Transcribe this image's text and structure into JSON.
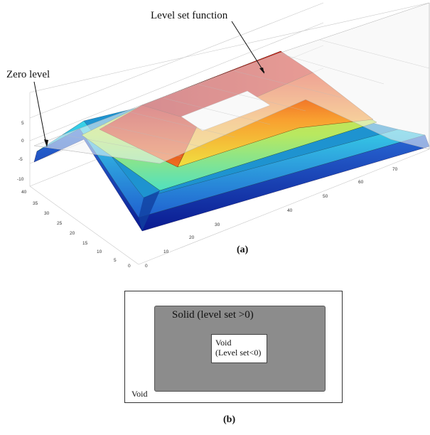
{
  "panel_a": {
    "caption": "(a)",
    "annotations": {
      "level_set_function": "Level set function",
      "zero_level": "Zero level"
    },
    "z_ticks": [
      "5",
      "0",
      "-5",
      "-10"
    ],
    "y_ticks": [
      "40",
      "35",
      "30",
      "25",
      "20",
      "15",
      "10",
      "5",
      "0"
    ],
    "x_ticks": [
      "0",
      "10",
      "20",
      "30",
      "40",
      "50",
      "60",
      "70"
    ],
    "colors": {
      "high": "#c8141e",
      "mid": "#f0e030",
      "low": "#1030b0",
      "plane": "#f4f4f4"
    }
  },
  "panel_b": {
    "caption": "(b)",
    "solid_label": "Solid (level set >0)",
    "inner_void_line1": "Void",
    "inner_void_line2": "(Level set<0)",
    "outer_void_label": "Void",
    "colors": {
      "solid": "#8c8c8c",
      "void": "#ffffff"
    }
  }
}
